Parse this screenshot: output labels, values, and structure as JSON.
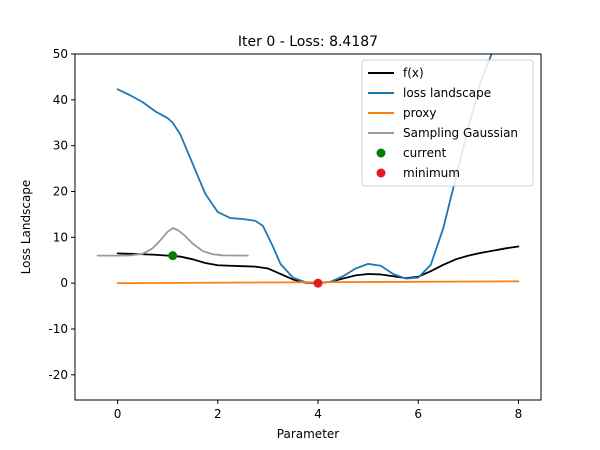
{
  "chart_data": {
    "type": "line",
    "title": "Iter 0 - Loss: 8.4187",
    "xlabel": "Parameter",
    "ylabel": "Loss Landscape",
    "xlim": [
      -0.85,
      8.45
    ],
    "ylim": [
      -25.5,
      50
    ],
    "x_ticks": [
      0,
      2,
      4,
      6,
      8
    ],
    "y_ticks": [
      -20,
      -10,
      0,
      10,
      20,
      30,
      40,
      50
    ],
    "grid": false,
    "legend_position": "top-right",
    "series": [
      {
        "name": "f(x)",
        "color": "#000000",
        "x": [
          0,
          0.25,
          0.5,
          0.75,
          1.0,
          1.25,
          1.5,
          1.75,
          2.0,
          2.25,
          2.5,
          2.75,
          3.0,
          3.25,
          3.5,
          3.75,
          4.0,
          4.25,
          4.5,
          4.75,
          5.0,
          5.25,
          5.5,
          5.75,
          6.0,
          6.25,
          6.5,
          6.75,
          7.0,
          7.25,
          7.5,
          7.75,
          8.0
        ],
        "y": [
          6.5,
          6.4,
          6.3,
          6.2,
          6.0,
          5.8,
          5.2,
          4.4,
          3.9,
          3.8,
          3.7,
          3.6,
          3.2,
          2.0,
          0.8,
          0.1,
          0.0,
          0.3,
          1.0,
          1.7,
          2.0,
          1.9,
          1.5,
          1.1,
          1.4,
          2.6,
          4.0,
          5.2,
          6.0,
          6.6,
          7.1,
          7.6,
          8.0
        ]
      },
      {
        "name": "loss landscape",
        "color": "#1f77b4",
        "x": [
          0,
          0.25,
          0.5,
          0.75,
          1.0,
          1.1,
          1.25,
          1.5,
          1.75,
          2.0,
          2.25,
          2.5,
          2.75,
          2.9,
          3.1,
          3.25,
          3.5,
          3.75,
          4.0,
          4.25,
          4.5,
          4.75,
          5.0,
          5.25,
          5.5,
          5.75,
          6.0,
          6.25,
          6.5,
          6.75,
          7.0,
          7.25,
          7.5
        ],
        "y": [
          42.3,
          41.0,
          39.5,
          37.5,
          36.0,
          35.0,
          32.5,
          26.0,
          19.5,
          15.5,
          14.2,
          14.0,
          13.6,
          12.5,
          8.0,
          4.2,
          1.2,
          0.2,
          0.0,
          0.3,
          1.5,
          3.2,
          4.2,
          3.8,
          2.0,
          1.0,
          1.2,
          4.0,
          12.0,
          23.0,
          34.0,
          44.0,
          51.0
        ]
      },
      {
        "name": "proxy",
        "color": "#ff7f0e",
        "x": [
          0,
          8
        ],
        "y": [
          0.0,
          0.4
        ]
      },
      {
        "name": "Sampling Gaussian",
        "color": "#999999",
        "x": [
          -0.4,
          0,
          0.25,
          0.5,
          0.7,
          0.85,
          1.0,
          1.1,
          1.2,
          1.35,
          1.5,
          1.7,
          1.9,
          2.1,
          2.6
        ],
        "y": [
          6.0,
          6.0,
          6.05,
          6.4,
          7.6,
          9.3,
          11.2,
          12.0,
          11.6,
          10.3,
          8.6,
          7.0,
          6.3,
          6.05,
          6.0
        ]
      }
    ],
    "points": [
      {
        "name": "current",
        "color": "#008000",
        "x": 1.1,
        "y": 6.0
      },
      {
        "name": "minimum",
        "color": "#e41a1c",
        "x": 4.0,
        "y": 0.0
      }
    ]
  }
}
